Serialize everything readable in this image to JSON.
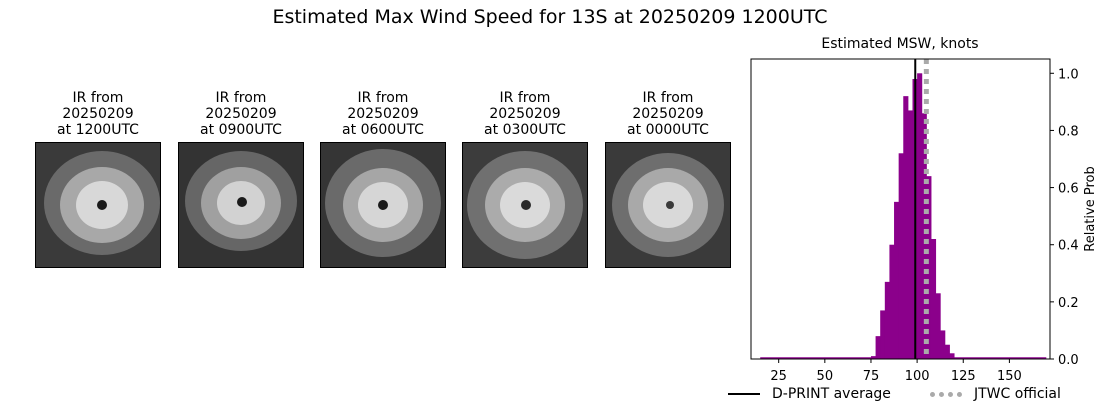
{
  "page_title": "Estimated Max Wind Speed for 13S at 20250209 1200UTC",
  "ir_panels": [
    {
      "line1": "IR from",
      "line2": "20250209",
      "line3": "at 1200UTC"
    },
    {
      "line1": "IR from",
      "line2": "20250209",
      "line3": "at 0900UTC"
    },
    {
      "line1": "IR from",
      "line2": "20250209",
      "line3": "at 0600UTC"
    },
    {
      "line1": "IR from",
      "line2": "20250209",
      "line3": "at 0300UTC"
    },
    {
      "line1": "IR from",
      "line2": "20250209",
      "line3": "at 0000UTC"
    }
  ],
  "chart_data": {
    "type": "bar",
    "title": "Estimated MSW, knots",
    "xlabel": "",
    "ylabel": "Relative Prob",
    "xlim": [
      10,
      172
    ],
    "ylim": [
      0,
      1.05
    ],
    "x_ticks": [
      25,
      50,
      75,
      100,
      125,
      150
    ],
    "y_ticks": [
      0.0,
      0.2,
      0.4,
      0.6,
      0.8,
      1.0
    ],
    "y_tick_labels": [
      "0.0",
      "0.2",
      "0.4",
      "0.6",
      "0.8",
      "1.0"
    ],
    "y_axis_side": "right",
    "bar_color": "#8b008b",
    "bin_width": 2.5,
    "bins": [
      {
        "x": 75,
        "value": 0.01
      },
      {
        "x": 77.5,
        "value": 0.08
      },
      {
        "x": 80,
        "value": 0.17
      },
      {
        "x": 82.5,
        "value": 0.27
      },
      {
        "x": 85,
        "value": 0.4
      },
      {
        "x": 87.5,
        "value": 0.55
      },
      {
        "x": 90,
        "value": 0.72
      },
      {
        "x": 92.5,
        "value": 0.92
      },
      {
        "x": 95,
        "value": 0.87
      },
      {
        "x": 97.5,
        "value": 0.98
      },
      {
        "x": 100,
        "value": 1.0
      },
      {
        "x": 102.5,
        "value": 0.86
      },
      {
        "x": 105,
        "value": 0.64
      },
      {
        "x": 107.5,
        "value": 0.42
      },
      {
        "x": 110,
        "value": 0.23
      },
      {
        "x": 112.5,
        "value": 0.1
      },
      {
        "x": 115,
        "value": 0.05
      },
      {
        "x": 117.5,
        "value": 0.02
      }
    ],
    "baseline_range": [
      15,
      170
    ],
    "dprint_average": 99,
    "jtwc_official": 105,
    "legend": [
      {
        "label": "D-PRINT average",
        "style": "solid",
        "color": "#000000"
      },
      {
        "label": "JTWC official",
        "style": "dotted",
        "color": "#aaaaaa"
      }
    ],
    "legend_placement": "bottom-right"
  }
}
